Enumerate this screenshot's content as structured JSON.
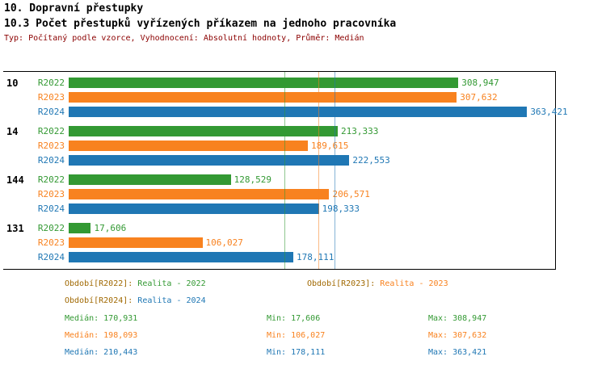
{
  "header": {
    "title1": "10. Dopravní přestupky",
    "title2": "10.3 Počet přestupků vyřízených příkazem na jednoho pracovníka",
    "subtitle": "Typ: Počítaný podle vzorce, Vyhodnocení: Absolutní hodnoty, Průměr: Medián"
  },
  "colors": {
    "r2022": "#339933",
    "r2023": "#f8821f",
    "r2024": "#1f77b4",
    "legend-prefix": "#a06800",
    "meta-text": "#8b0000",
    "frame": "#000000"
  },
  "chart_data": {
    "type": "bar",
    "orientation": "horizontal",
    "title": "10.3 Počet přestupků vyřízených příkazem na jednoho pracovníka",
    "x_axis": {
      "min": 0,
      "max": 385
    },
    "grid": "median-reference-lines-only",
    "legend_position": "bottom",
    "series": [
      {
        "key": "r2022",
        "label": "R2022",
        "color": "#339933"
      },
      {
        "key": "r2023",
        "label": "R2023",
        "color": "#f8821f"
      },
      {
        "key": "r2024",
        "label": "R2024",
        "color": "#1f77b4"
      }
    ],
    "groups": [
      {
        "category": "10",
        "values": [
          308.947,
          307.632,
          363.421
        ],
        "value_labels": [
          "308,947",
          "307,632",
          "363,421"
        ]
      },
      {
        "category": "14",
        "values": [
          213.333,
          189.615,
          222.553
        ],
        "value_labels": [
          "213,333",
          "189,615",
          "222,553"
        ]
      },
      {
        "category": "144",
        "values": [
          128.529,
          206.571,
          198.333
        ],
        "value_labels": [
          "128,529",
          "206,571",
          "198,333"
        ]
      },
      {
        "category": "131",
        "values": [
          17.606,
          106.027,
          178.111
        ],
        "value_labels": [
          "17,606",
          "106,027",
          "178,111"
        ]
      }
    ],
    "median_lines": [
      {
        "series": "r2022",
        "value": 170.931
      },
      {
        "series": "r2023",
        "value": 198.093
      },
      {
        "series": "r2024",
        "value": 210.443
      }
    ]
  },
  "legend": {
    "items": [
      {
        "prefix": "Období[R2022]:",
        "value": "Realita - 2022"
      },
      {
        "prefix": "Období[R2023]:",
        "value": "Realita - 2023"
      },
      {
        "prefix": "Období[R2024]:",
        "value": "Realita - 2024"
      }
    ]
  },
  "stats": {
    "rows": [
      {
        "median": "Medián: 170,931",
        "min": "Min: 17,606",
        "max": "Max: 308,947"
      },
      {
        "median": "Medián: 198,093",
        "min": "Min: 106,027",
        "max": "Max: 307,632"
      },
      {
        "median": "Medián: 210,443",
        "min": "Min: 178,111",
        "max": "Max: 363,421"
      }
    ]
  }
}
